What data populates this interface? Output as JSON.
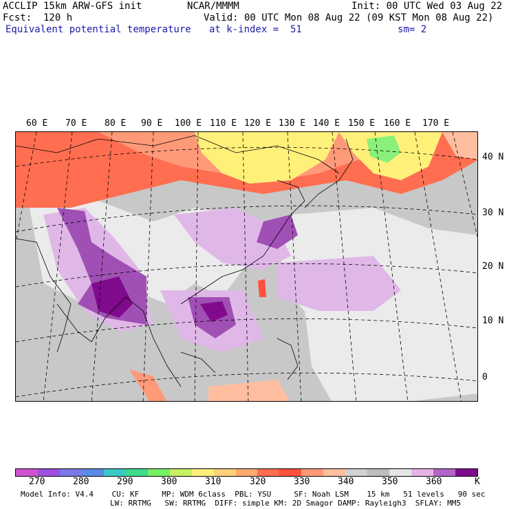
{
  "header": {
    "model": "ACCLIP 15km ARW-GFS init",
    "center": "NCAR/MMMM",
    "init": "Init: 00 UTC Wed 03 Aug 22",
    "fcst": "Fcst:  120 h",
    "valid": "Valid: 00 UTC Mon 08 Aug 22 (09 KST Mon 08 Aug 22)",
    "field": "Equivalent potential temperature",
    "level": "at k-index =  51",
    "smooth": "sm= 2"
  },
  "map": {
    "lon_labels": [
      "60 E",
      "70 E",
      "80 E",
      "90 E",
      "100 E",
      "110 E",
      "120 E",
      "130 E",
      "140 E",
      "150 E",
      "160 E",
      "170 E"
    ],
    "lat_labels": [
      "40 N",
      "30 N",
      "20 N",
      "10 N",
      "0"
    ],
    "colors": {
      "background_gray": "#c8c8c8",
      "light_gray": "#ebebeb",
      "hot_red": "#ff5a3c",
      "orange": "#ff9a6a",
      "yellow": "#fff07a",
      "green": "#8af07a",
      "lavender": "#e0b8e8",
      "purple": "#a050b4",
      "dark_purple": "#7a0a8c"
    }
  },
  "colorbar": {
    "colors": [
      "#d054d0",
      "#a050e0",
      "#7a78e8",
      "#5a8ae8",
      "#3cc8c8",
      "#3cdc8c",
      "#78f064",
      "#c8f064",
      "#fff07a",
      "#ffd278",
      "#ffaa6e",
      "#ff6e50",
      "#ff503c",
      "#ff9a78",
      "#ffbea0",
      "#d2d2d2",
      "#bebebe",
      "#e6e6e6",
      "#e6b4e6",
      "#b464c8",
      "#800a8c"
    ],
    "tick_labels": [
      "270",
      "280",
      "290",
      "300",
      "310",
      "320",
      "330",
      "340",
      "350",
      "360"
    ],
    "unit": "K"
  },
  "footer": {
    "line1": "Model Info: V4.4    CU: KF     MP: WDM 6class  PBL: YSU     SF: Noah LSM    15 km   51 levels   90 sec",
    "line2": "LW: RRTMG   SW: RRTMG  DIFF: simple KM: 2D Smagor DAMP: Rayleigh3  SFLAY: MM5"
  }
}
